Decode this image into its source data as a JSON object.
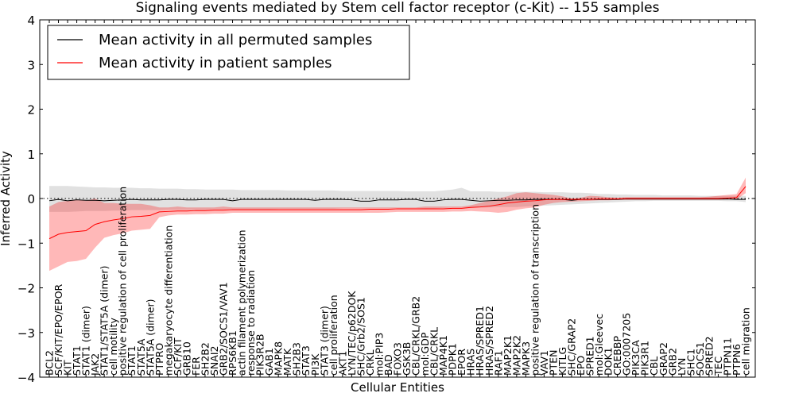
{
  "chart_data": {
    "type": "line",
    "title": "Signaling events mediated by Stem cell factor receptor (c-Kit) -- 155 samples",
    "xlabel": "Cellular Entities",
    "ylabel": "Inferred Activity",
    "ylim": [
      -4,
      4
    ],
    "yticks": [
      -4,
      -3,
      -2,
      -1,
      0,
      1,
      2,
      3,
      4
    ],
    "reference_line": 0,
    "legend_position": "top-left",
    "legend": [
      {
        "label": "Mean activity in all permuted samples",
        "color": "#000000"
      },
      {
        "label": "Mean activity in patient samples",
        "color": "#ff0000"
      }
    ],
    "x_labels": [
      "BCL2",
      "SCF/KIT/EPO/EPOR",
      "KIT",
      "STAT1",
      "STAT1 (dimer)",
      "JAK2",
      "STAT1/STAT5A (dimer)",
      "cell motility",
      "positive regulation of cell proliferation",
      "STAT1",
      "STAT5A",
      "STAT5A (dimer)",
      "PTPRO",
      "megakaryocyte differentiation",
      "SCF/KIT",
      "GRB10",
      "FER",
      "SH2B2",
      "SNAI2",
      "GRB2/SOCS1/VAV1",
      "RPS6KB1",
      "actin filament polymerization",
      "response to radiation",
      "PIK3R2B",
      "GAB1",
      "MAPK8",
      "MATK",
      "SH2B3",
      "STAT3",
      "PI3K",
      "STAT3 (dimer)",
      "cell proliferation",
      "AKT1",
      "LYN/TEC/p62DOK",
      "SHC/Grb2/SOS1",
      "CRKL",
      "mol:PIP3",
      "BAD",
      "FOXO3",
      "GSK3B",
      "CBL/CRKL/GRB2",
      "mol:GDP",
      "CBL/CRKL",
      "MAP4K1",
      "PDPK1",
      "EPOR",
      "HRAS",
      "HRAS/SPRED1",
      "HRAS/SPRED2",
      "RAF1",
      "MAP2K1",
      "MAP2K2",
      "MAPK3",
      "positive regulation of transcription",
      "VAV1",
      "PTEN",
      "KITLG",
      "SHC/GRAP2",
      "EPO",
      "SPRED1",
      "mol:Gleevec",
      "DOK1",
      "CREBBP",
      "GO:0007205",
      "PIK3CA",
      "PIK3R1",
      "CBL",
      "GRAP2",
      "GRB2",
      "LYN",
      "SHC1",
      "SOCS1",
      "SPRED2",
      "TEC",
      "PTPN11",
      "PTPN6",
      "cell migration"
    ],
    "series": [
      {
        "name": "Mean activity in all permuted samples",
        "color": "#000000",
        "values": [
          -0.05,
          -0.02,
          -0.05,
          -0.03,
          -0.04,
          -0.04,
          -0.05,
          -0.04,
          -0.03,
          -0.02,
          -0.03,
          -0.03,
          -0.03,
          -0.02,
          -0.02,
          -0.03,
          -0.03,
          -0.02,
          -0.02,
          -0.02,
          -0.05,
          -0.02,
          -0.02,
          -0.02,
          -0.02,
          -0.02,
          -0.02,
          -0.02,
          -0.02,
          -0.04,
          -0.02,
          -0.02,
          -0.02,
          -0.03,
          -0.06,
          -0.06,
          -0.03,
          -0.03,
          -0.03,
          -0.02,
          -0.02,
          -0.06,
          -0.06,
          -0.03,
          -0.02,
          -0.02,
          -0.04,
          -0.06,
          -0.05,
          -0.04,
          -0.04,
          -0.03,
          -0.03,
          -0.02,
          -0.02,
          -0.02,
          -0.02,
          -0.04,
          -0.02,
          -0.02,
          -0.02,
          -0.02,
          -0.02,
          -0.01,
          -0.01,
          -0.01,
          -0.01,
          -0.01,
          -0.01,
          -0.01,
          -0.01,
          -0.01,
          -0.01,
          -0.01,
          -0.01,
          -0.02,
          -0.02
        ],
        "band_upper": [
          0.28,
          0.28,
          0.28,
          0.27,
          0.26,
          0.25,
          0.25,
          0.24,
          0.24,
          0.24,
          0.23,
          0.23,
          0.22,
          0.22,
          0.22,
          0.21,
          0.21,
          0.2,
          0.2,
          0.2,
          0.2,
          0.19,
          0.19,
          0.19,
          0.19,
          0.19,
          0.18,
          0.18,
          0.18,
          0.18,
          0.18,
          0.18,
          0.17,
          0.17,
          0.17,
          0.17,
          0.17,
          0.17,
          0.17,
          0.16,
          0.16,
          0.16,
          0.16,
          0.18,
          0.2,
          0.24,
          0.16,
          0.16,
          0.16,
          0.15,
          0.15,
          0.15,
          0.15,
          0.15,
          0.14,
          0.14,
          0.14,
          0.13,
          0.13,
          0.12,
          0.1,
          0.1,
          0.09,
          0.09,
          0.08,
          0.08,
          0.08,
          0.07,
          0.07,
          0.07,
          0.07,
          0.06,
          0.06,
          0.06,
          0.06,
          0.06,
          0.06
        ],
        "band_lower": [
          -0.3,
          -0.3,
          -0.3,
          -0.29,
          -0.28,
          -0.28,
          -0.28,
          -0.27,
          -0.27,
          -0.26,
          -0.26,
          -0.26,
          -0.26,
          -0.25,
          -0.25,
          -0.25,
          -0.25,
          -0.25,
          -0.24,
          -0.24,
          -0.24,
          -0.24,
          -0.24,
          -0.24,
          -0.24,
          -0.23,
          -0.23,
          -0.23,
          -0.23,
          -0.23,
          -0.23,
          -0.23,
          -0.22,
          -0.22,
          -0.22,
          -0.22,
          -0.22,
          -0.22,
          -0.21,
          -0.21,
          -0.21,
          -0.22,
          -0.22,
          -0.21,
          -0.2,
          -0.2,
          -0.2,
          -0.2,
          -0.2,
          -0.19,
          -0.19,
          -0.19,
          -0.18,
          -0.17,
          -0.16,
          -0.15,
          -0.14,
          -0.13,
          -0.12,
          -0.11,
          -0.1,
          -0.09,
          -0.08,
          -0.07,
          -0.06,
          -0.06,
          -0.05,
          -0.05,
          -0.05,
          -0.05,
          -0.05,
          -0.05,
          -0.05,
          -0.05,
          -0.06,
          -0.06,
          -0.08
        ]
      },
      {
        "name": "Mean activity in patient samples",
        "color": "#ff0000",
        "values": [
          -0.9,
          -0.8,
          -0.76,
          -0.74,
          -0.72,
          -0.58,
          -0.52,
          -0.48,
          -0.45,
          -0.41,
          -0.4,
          -0.38,
          -0.3,
          -0.29,
          -0.28,
          -0.28,
          -0.27,
          -0.27,
          -0.26,
          -0.26,
          -0.25,
          -0.25,
          -0.25,
          -0.25,
          -0.25,
          -0.25,
          -0.25,
          -0.25,
          -0.25,
          -0.25,
          -0.25,
          -0.25,
          -0.25,
          -0.25,
          -0.25,
          -0.24,
          -0.24,
          -0.24,
          -0.23,
          -0.23,
          -0.23,
          -0.23,
          -0.23,
          -0.23,
          -0.22,
          -0.22,
          -0.2,
          -0.19,
          -0.17,
          -0.14,
          -0.1,
          -0.08,
          -0.06,
          -0.05,
          -0.03,
          -0.02,
          -0.02,
          -0.02,
          -0.02,
          -0.02,
          -0.01,
          -0.01,
          -0.01,
          0.0,
          0.0,
          0.0,
          0.0,
          0.0,
          0.0,
          0.0,
          0.0,
          0.0,
          0.0,
          0.0,
          0.01,
          0.02,
          0.27
        ],
        "band_upper": [
          -0.18,
          -0.08,
          -0.05,
          -0.02,
          -0.05,
          0.0,
          -0.1,
          -0.1,
          -0.12,
          -0.12,
          -0.12,
          -0.15,
          -0.2,
          -0.2,
          -0.18,
          -0.2,
          -0.2,
          -0.2,
          -0.2,
          -0.18,
          -0.2,
          -0.2,
          -0.2,
          -0.2,
          -0.2,
          -0.2,
          -0.2,
          -0.2,
          -0.2,
          -0.2,
          -0.2,
          -0.2,
          -0.2,
          -0.2,
          -0.2,
          -0.2,
          -0.2,
          -0.2,
          -0.2,
          -0.2,
          -0.2,
          -0.18,
          -0.18,
          -0.18,
          -0.18,
          -0.18,
          -0.15,
          -0.1,
          -0.05,
          0.0,
          0.05,
          0.12,
          0.14,
          0.12,
          0.1,
          0.08,
          0.05,
          0.0,
          0.02,
          0.06,
          0.05,
          0.03,
          0.02,
          0.03,
          0.03,
          0.03,
          0.03,
          0.03,
          0.03,
          0.03,
          0.03,
          0.03,
          0.04,
          0.06,
          0.08,
          0.1,
          0.47
        ],
        "band_lower": [
          -1.62,
          -1.52,
          -1.42,
          -1.4,
          -1.35,
          -1.1,
          -0.88,
          -0.82,
          -0.78,
          -0.72,
          -0.7,
          -0.68,
          -0.42,
          -0.38,
          -0.36,
          -0.36,
          -0.35,
          -0.35,
          -0.34,
          -0.34,
          -0.32,
          -0.32,
          -0.32,
          -0.32,
          -0.32,
          -0.32,
          -0.32,
          -0.32,
          -0.32,
          -0.32,
          -0.32,
          -0.32,
          -0.32,
          -0.32,
          -0.32,
          -0.32,
          -0.32,
          -0.31,
          -0.3,
          -0.3,
          -0.3,
          -0.3,
          -0.3,
          -0.3,
          -0.29,
          -0.29,
          -0.28,
          -0.29,
          -0.3,
          -0.32,
          -0.3,
          -0.25,
          -0.22,
          -0.2,
          -0.14,
          -0.1,
          -0.08,
          -0.07,
          -0.06,
          -0.05,
          -0.04,
          -0.04,
          -0.03,
          -0.03,
          -0.03,
          -0.03,
          -0.03,
          -0.03,
          -0.03,
          -0.03,
          -0.03,
          -0.03,
          -0.03,
          -0.03,
          -0.02,
          -0.02,
          0.12
        ]
      }
    ]
  }
}
